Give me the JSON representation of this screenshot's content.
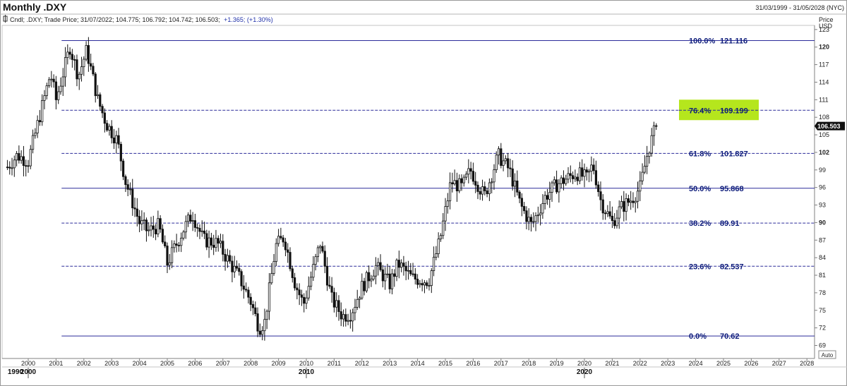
{
  "header": {
    "title": "Monthly .DXY",
    "range": "31/03/1999 - 31/05/2028 (NYC)"
  },
  "legend": {
    "prefix": "Cndl; .DXY; Trade Price; 31/07/2022; 104.775; 106.792; 104.742; 106.503;",
    "change": "+1.365; (+1.30%)"
  },
  "axis": {
    "price_label": "Price",
    "currency": "USD",
    "auto_label": "Auto",
    "y_ticks": [
      "69",
      "72",
      "75",
      "78",
      "81",
      "84",
      "87",
      "90",
      "93",
      "96",
      "99",
      "102",
      "105",
      "108",
      "111",
      "114",
      "117",
      "120",
      "123"
    ],
    "x_years": [
      "2000",
      "2001",
      "2002",
      "2003",
      "2004",
      "2005",
      "2006",
      "2007",
      "2008",
      "2009",
      "2010",
      "2011",
      "2012",
      "2013",
      "2014",
      "2015",
      "2016",
      "2017",
      "2018",
      "2019",
      "2020",
      "2021",
      "2022",
      "2023",
      "2024",
      "2025",
      "2026",
      "2027",
      "2028"
    ],
    "eras": [
      "1990",
      "2000",
      "2010",
      "2020"
    ],
    "last_price": "106.503"
  },
  "chart_data": {
    "type": "candlestick",
    "title": "Monthly .DXY",
    "ylabel": "Price USD",
    "ylim": [
      68,
      124
    ],
    "x_range": [
      "1999-03",
      "2028-05"
    ],
    "grid": false,
    "fib_levels": [
      {
        "pct": "100.0%",
        "value": "121.116",
        "y": 121.116,
        "style": "solid"
      },
      {
        "pct": "76.4%",
        "value": "109.199",
        "y": 109.199,
        "style": "dashed",
        "highlight": "#b5e61d"
      },
      {
        "pct": "61.8%",
        "value": "101.827",
        "y": 101.827,
        "style": "dashed"
      },
      {
        "pct": "50.0%",
        "value": "95.868",
        "y": 95.868,
        "style": "solid"
      },
      {
        "pct": "38.2%",
        "value": "89.91",
        "y": 89.91,
        "style": "dashed"
      },
      {
        "pct": "23.6%",
        "value": "82.537",
        "y": 82.537,
        "style": "dashed"
      },
      {
        "pct": "0.0%",
        "value": "70.62",
        "y": 70.62,
        "style": "solid"
      }
    ],
    "anchors": [
      {
        "t": 1999.25,
        "y": 99.5
      },
      {
        "t": 1999.6,
        "y": 101.5
      },
      {
        "t": 2000.0,
        "y": 100.5
      },
      {
        "t": 2000.4,
        "y": 108.0
      },
      {
        "t": 2000.8,
        "y": 115.5
      },
      {
        "t": 2001.0,
        "y": 111.0
      },
      {
        "t": 2001.5,
        "y": 120.0
      },
      {
        "t": 2001.8,
        "y": 115.0
      },
      {
        "t": 2002.1,
        "y": 119.5
      },
      {
        "t": 2002.5,
        "y": 111.0
      },
      {
        "t": 2002.8,
        "y": 107.0
      },
      {
        "t": 2003.2,
        "y": 104.0
      },
      {
        "t": 2003.5,
        "y": 97.0
      },
      {
        "t": 2004.0,
        "y": 90.0
      },
      {
        "t": 2004.3,
        "y": 88.5
      },
      {
        "t": 2004.7,
        "y": 89.5
      },
      {
        "t": 2005.0,
        "y": 83.0
      },
      {
        "t": 2005.6,
        "y": 89.0
      },
      {
        "t": 2005.9,
        "y": 91.5
      },
      {
        "t": 2006.3,
        "y": 87.0
      },
      {
        "t": 2006.8,
        "y": 86.5
      },
      {
        "t": 2007.2,
        "y": 83.5
      },
      {
        "t": 2007.6,
        "y": 80.5
      },
      {
        "t": 2008.0,
        "y": 76.5
      },
      {
        "t": 2008.3,
        "y": 72.0
      },
      {
        "t": 2008.5,
        "y": 73.0
      },
      {
        "t": 2008.9,
        "y": 86.0
      },
      {
        "t": 2009.2,
        "y": 87.5
      },
      {
        "t": 2009.6,
        "y": 79.5
      },
      {
        "t": 2009.9,
        "y": 76.0
      },
      {
        "t": 2010.5,
        "y": 86.5
      },
      {
        "t": 2010.9,
        "y": 77.0
      },
      {
        "t": 2011.3,
        "y": 74.0
      },
      {
        "t": 2011.6,
        "y": 74.5
      },
      {
        "t": 2012.0,
        "y": 79.0
      },
      {
        "t": 2012.5,
        "y": 82.5
      },
      {
        "t": 2013.0,
        "y": 79.5
      },
      {
        "t": 2013.3,
        "y": 83.0
      },
      {
        "t": 2013.8,
        "y": 80.5
      },
      {
        "t": 2014.4,
        "y": 80.0
      },
      {
        "t": 2014.8,
        "y": 87.0
      },
      {
        "t": 2015.2,
        "y": 97.0
      },
      {
        "t": 2015.6,
        "y": 96.0
      },
      {
        "t": 2015.9,
        "y": 99.0
      },
      {
        "t": 2016.4,
        "y": 94.5
      },
      {
        "t": 2016.9,
        "y": 101.5
      },
      {
        "t": 2017.3,
        "y": 99.0
      },
      {
        "t": 2017.7,
        "y": 93.0
      },
      {
        "t": 2018.1,
        "y": 89.5
      },
      {
        "t": 2018.6,
        "y": 94.5
      },
      {
        "t": 2019.0,
        "y": 96.5
      },
      {
        "t": 2019.7,
        "y": 98.5
      },
      {
        "t": 2020.1,
        "y": 97.5
      },
      {
        "t": 2020.3,
        "y": 100.0
      },
      {
        "t": 2020.6,
        "y": 93.5
      },
      {
        "t": 2021.0,
        "y": 90.0
      },
      {
        "t": 2021.3,
        "y": 92.5
      },
      {
        "t": 2021.7,
        "y": 94.0
      },
      {
        "t": 2022.0,
        "y": 96.0
      },
      {
        "t": 2022.3,
        "y": 102.5
      },
      {
        "t": 2022.58,
        "y": 106.5
      }
    ],
    "last_close": 106.503
  },
  "colors": {
    "fib_line": "#2b2b9a",
    "fib_text": "#0b1a7a",
    "highlight": "#b5e61d",
    "candle": "#111111"
  }
}
